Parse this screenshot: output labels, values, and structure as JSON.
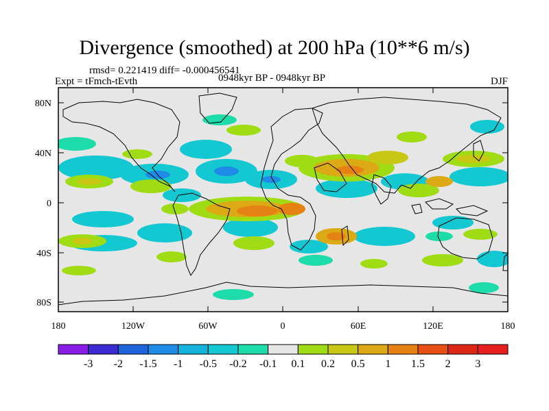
{
  "plot": {
    "title": "Divergence (smoothed) at 200 hPa (10**6 m/s)",
    "stats": "rmsd= 0.221419 diff= -0.000456541",
    "experiment": "Expt = tFmch-tEvth",
    "period": "0948kyr BP - 0948kyr BP",
    "season": "DJF"
  },
  "axes": {
    "lat_labels": [
      "80N",
      "40N",
      "0",
      "40S",
      "80S"
    ],
    "lon_labels": [
      "180",
      "120W",
      "60W",
      "0",
      "60E",
      "120E",
      "180"
    ]
  },
  "colorbar": {
    "labels": [
      "-3",
      "-2",
      "-1.5",
      "-1",
      "-0.5",
      "-0.2",
      "-0.1",
      "0.1",
      "0.2",
      "0.5",
      "1",
      "1.5",
      "2",
      "3"
    ],
    "colors": [
      "#8a1ee6",
      "#3c2ad2",
      "#1e64dc",
      "#1e8ce6",
      "#14b4dc",
      "#14c8d2",
      "#1edcaa",
      "#e6e6e6",
      "#a0dc14",
      "#c8c814",
      "#dcaa14",
      "#e68214",
      "#e65014",
      "#dc2814",
      "#e61e1e"
    ]
  },
  "colors": {
    "no_data": "#e6e6e6",
    "coast": "#000000"
  }
}
